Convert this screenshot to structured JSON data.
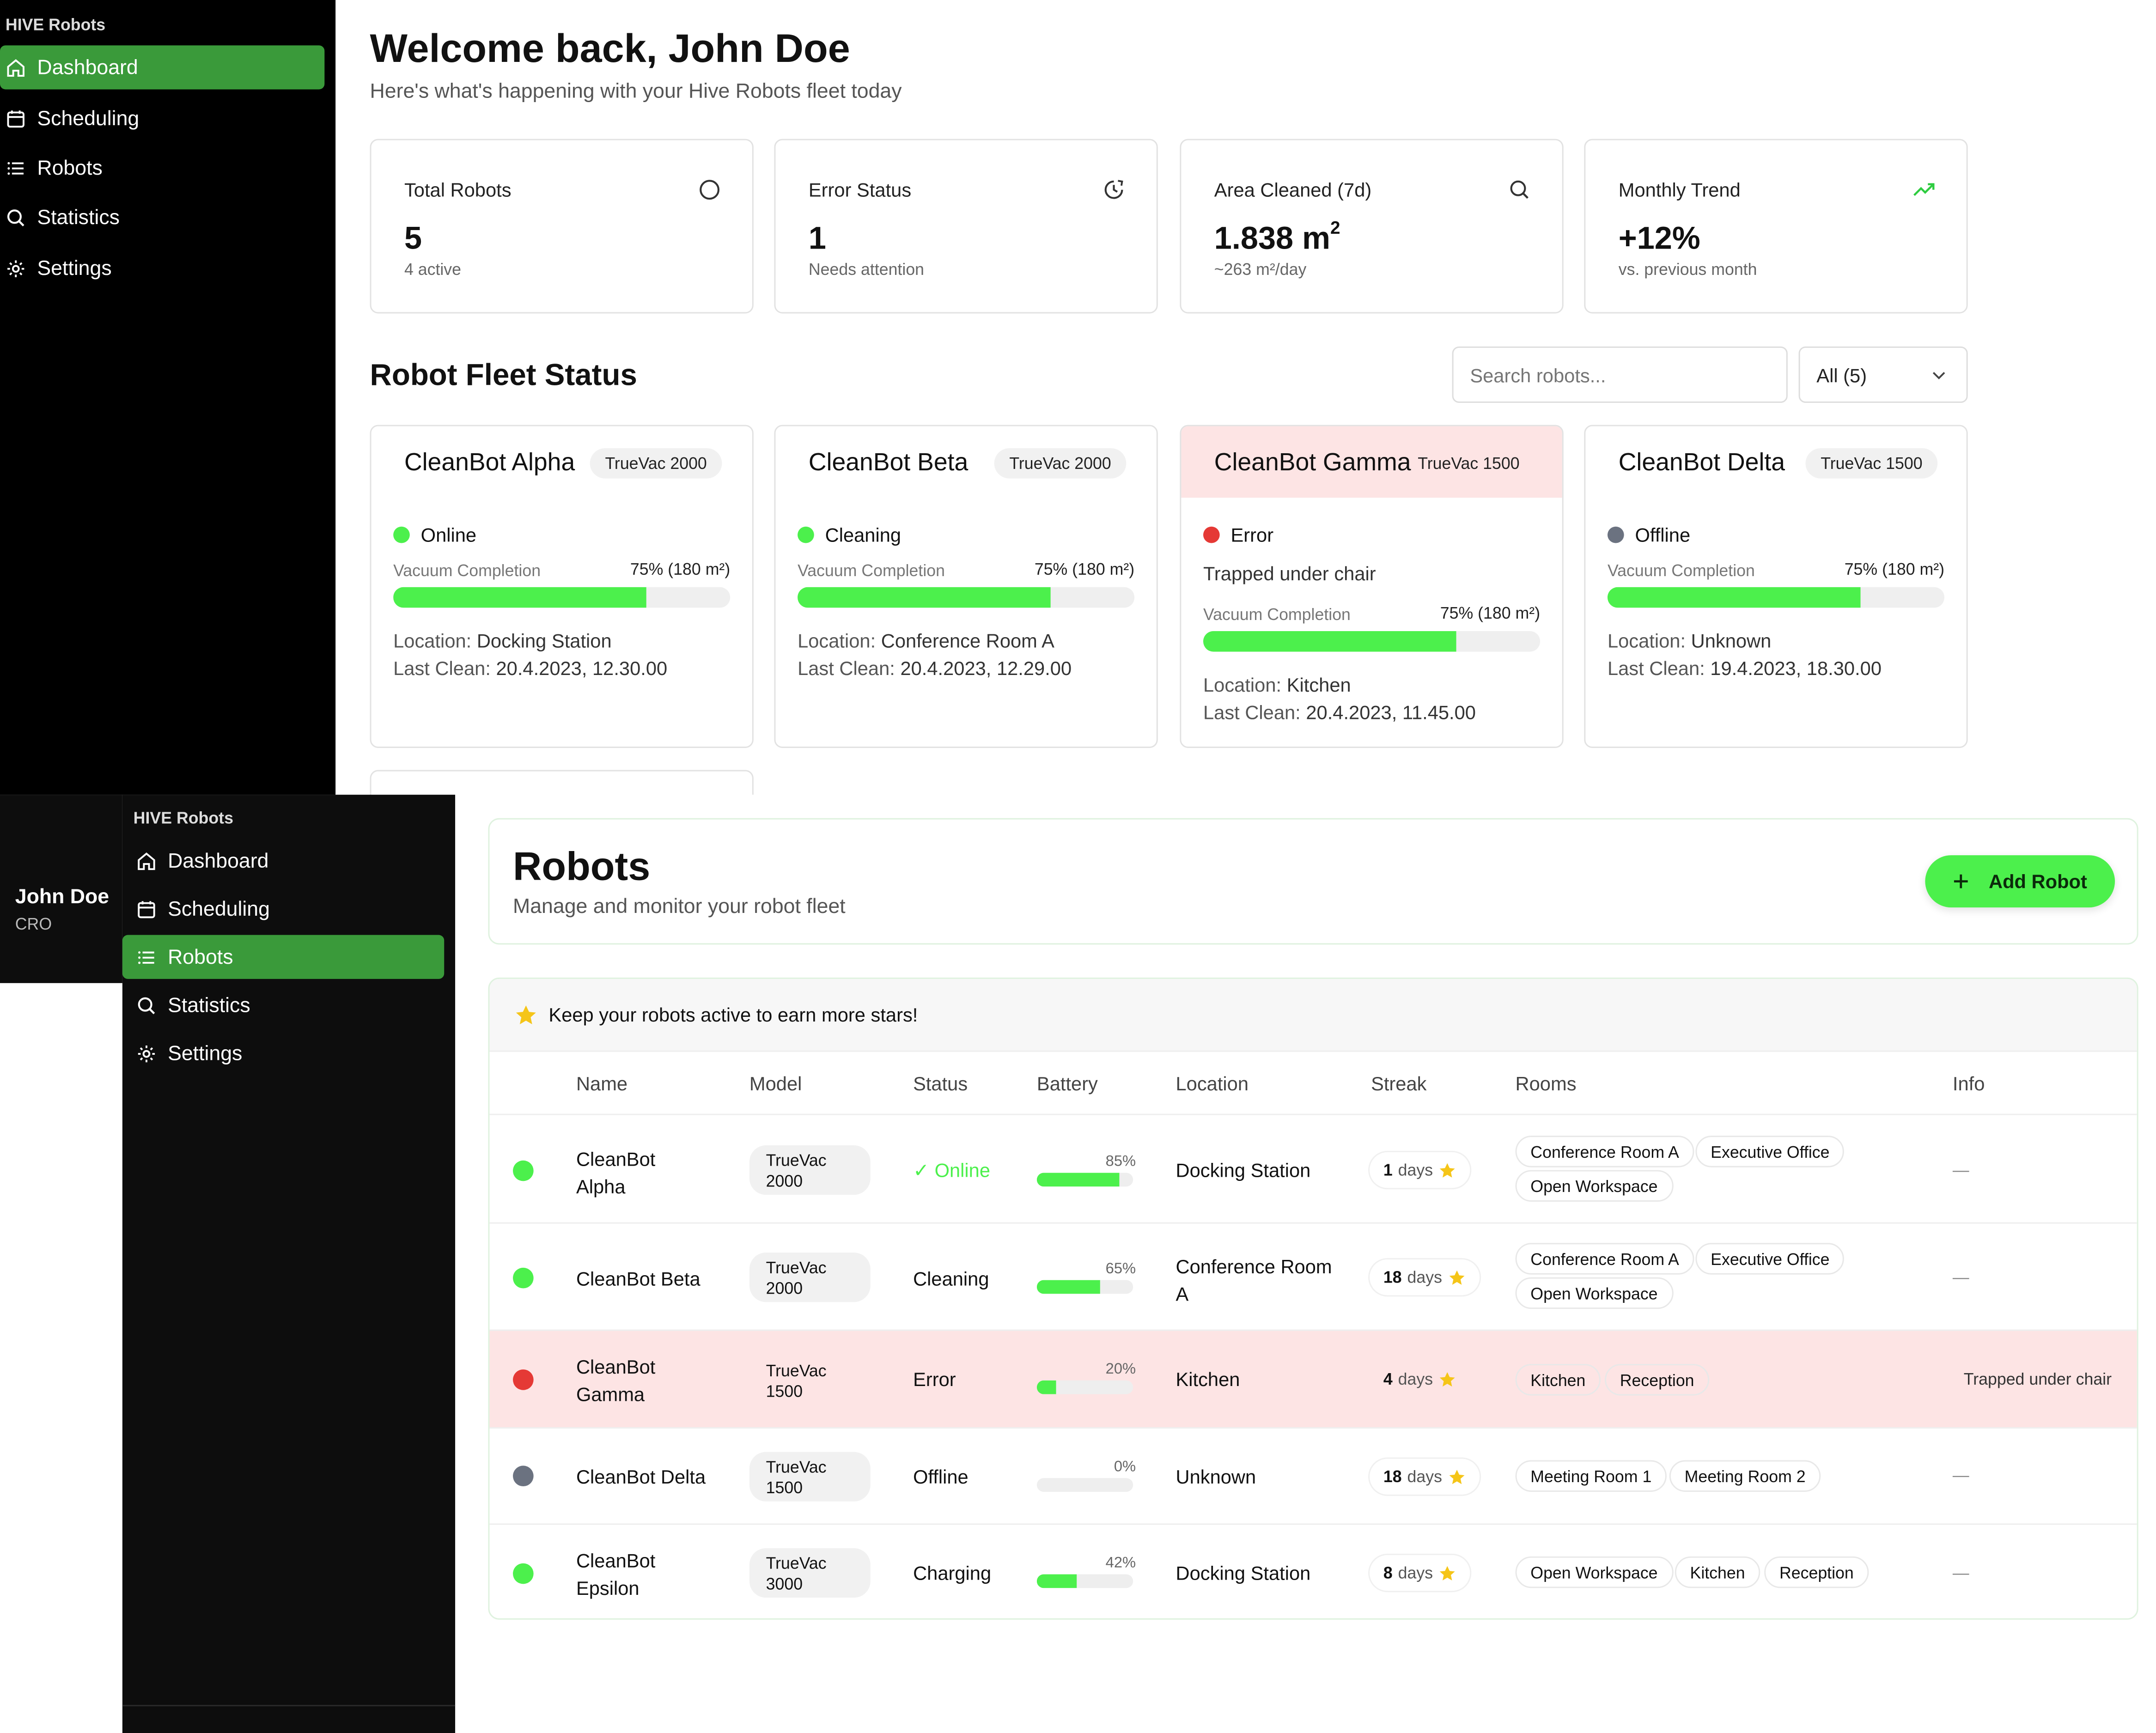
{
  "dashboard": {
    "brand": "HIVE Robots",
    "nav": [
      {
        "label": "Dashboard",
        "icon": "home-icon",
        "active": true
      },
      {
        "label": "Scheduling",
        "icon": "calendar-icon",
        "active": false
      },
      {
        "label": "Robots",
        "icon": "list-icon",
        "active": false
      },
      {
        "label": "Statistics",
        "icon": "search-icon",
        "active": false
      },
      {
        "label": "Settings",
        "icon": "gear-icon",
        "active": false
      }
    ],
    "welcome": "Welcome back, John Doe",
    "subtitle": "Here's what's happening with your Hive Robots fleet today",
    "stats": [
      {
        "label": "Total Robots",
        "value": "5",
        "note": "4 active",
        "icon": "circle-icon"
      },
      {
        "label": "Error Status",
        "value": "1",
        "note": "Needs attention",
        "icon": "clock-icon"
      },
      {
        "label": "Area Cleaned (7d)",
        "value": "1.838 m",
        "value_sup": "2",
        "note": "~263 m²/day",
        "icon": "search-icon"
      },
      {
        "label": "Monthly Trend",
        "value": "+12%",
        "note": "vs. previous month",
        "icon": "trend-up-icon"
      }
    ],
    "fleet_title": "Robot Fleet Status",
    "search_placeholder": "Search robots...",
    "filter_value": "All (5)",
    "vacuum_label": "Vacuum Completion",
    "location_label": "Location:",
    "last_clean_label": "Last Clean:",
    "cards": [
      {
        "name": "CleanBot Alpha",
        "model": "TrueVac 2000",
        "status": "Online",
        "status_color": "#4cf04c",
        "message": "",
        "vacuum_value": "75% (180 m²)",
        "vacuum_pct": 75,
        "location": "Docking Station",
        "last_clean": "20.4.2023, 12.30.00"
      },
      {
        "name": "CleanBot Beta",
        "model": "TrueVac 2000",
        "status": "Cleaning",
        "status_color": "#4cf04c",
        "message": "",
        "vacuum_value": "75% (180 m²)",
        "vacuum_pct": 75,
        "location": "Conference Room A",
        "last_clean": "20.4.2023, 12.29.00"
      },
      {
        "name": "CleanBot Gamma",
        "model": "TrueVac 1500",
        "status": "Error",
        "status_color": "#e53935",
        "message": "Trapped under chair",
        "vacuum_value": "75% (180 m²)",
        "vacuum_pct": 75,
        "location": "Kitchen",
        "last_clean": "20.4.2023, 11.45.00"
      },
      {
        "name": "CleanBot Delta",
        "model": "TrueVac 1500",
        "status": "Offline",
        "status_color": "#6b7280",
        "message": "",
        "vacuum_value": "75% (180 m²)",
        "vacuum_pct": 75,
        "location": "Unknown",
        "last_clean": "19.4.2023, 18.30.00"
      }
    ]
  },
  "robots_page": {
    "brand": "HIVE Robots",
    "user_name": "John Doe",
    "user_role": "CRO",
    "nav": [
      {
        "label": "Dashboard",
        "icon": "home-icon",
        "active": false
      },
      {
        "label": "Scheduling",
        "icon": "calendar-icon",
        "active": false
      },
      {
        "label": "Robots",
        "icon": "list-icon",
        "active": true
      },
      {
        "label": "Statistics",
        "icon": "search-icon",
        "active": false
      },
      {
        "label": "Settings",
        "icon": "gear-icon",
        "active": false
      }
    ],
    "title": "Robots",
    "subtitle": "Manage and monitor your robot fleet",
    "add_button": "Add Robot",
    "banner": "Keep your robots active to earn more stars!",
    "columns": [
      "Name",
      "Model",
      "Status",
      "Battery",
      "Location",
      "Streak",
      "Rooms",
      "Info"
    ],
    "days_label": "days",
    "rows": [
      {
        "name": [
          "CleanBot",
          "Alpha"
        ],
        "model": [
          "TrueVac",
          "2000"
        ],
        "status": "Online",
        "status_color": "#4cf04c",
        "battery_label": "85%",
        "battery_pct": 85,
        "location": [
          "Docking Station"
        ],
        "streak": "1",
        "rooms": [
          [
            "Conference Room A",
            "Executive Office"
          ],
          [
            "Open Workspace"
          ]
        ],
        "info": "—",
        "error": false
      },
      {
        "name": [
          "CleanBot Beta"
        ],
        "model": [
          "TrueVac",
          "2000"
        ],
        "status": "Cleaning",
        "status_color": "#4cf04c",
        "battery_label": "65%",
        "battery_pct": 65,
        "location": [
          "Conference Room",
          "A"
        ],
        "streak": "18",
        "rooms": [
          [
            "Conference Room A",
            "Executive Office"
          ],
          [
            "Open Workspace"
          ]
        ],
        "info": "—",
        "error": false
      },
      {
        "name": [
          "CleanBot",
          "Gamma"
        ],
        "model": [
          "TrueVac",
          "1500"
        ],
        "status": "Error",
        "status_color": "#e53935",
        "battery_label": "20%",
        "battery_pct": 20,
        "location": [
          "Kitchen"
        ],
        "streak": "4",
        "rooms": [
          [
            "Kitchen",
            "Reception"
          ]
        ],
        "info": "Trapped under chair",
        "error": true
      },
      {
        "name": [
          "CleanBot Delta"
        ],
        "model": [
          "TrueVac",
          "1500"
        ],
        "status": "Offline",
        "status_color": "#6b7280",
        "battery_label": "0%",
        "battery_pct": 0,
        "location": [
          "Unknown"
        ],
        "streak": "18",
        "rooms": [
          [
            "Meeting Room 1",
            "Meeting Room 2"
          ]
        ],
        "info": "—",
        "error": false
      },
      {
        "name": [
          "CleanBot",
          "Epsilon"
        ],
        "model": [
          "TrueVac",
          "3000"
        ],
        "status": "Charging",
        "status_color": "#4cf04c",
        "battery_label": "42%",
        "battery_pct": 42,
        "location": [
          "Docking Station"
        ],
        "streak": "8",
        "rooms": [
          [
            "Open Workspace",
            "Kitchen",
            "Reception"
          ]
        ],
        "info": "—",
        "error": false
      }
    ]
  },
  "colors": {
    "accent": "#4cf04c",
    "nav_active": "#3a9a3a",
    "error_bg": "#fde4e4",
    "star": "#f5c518",
    "sidebar": "#000000"
  }
}
